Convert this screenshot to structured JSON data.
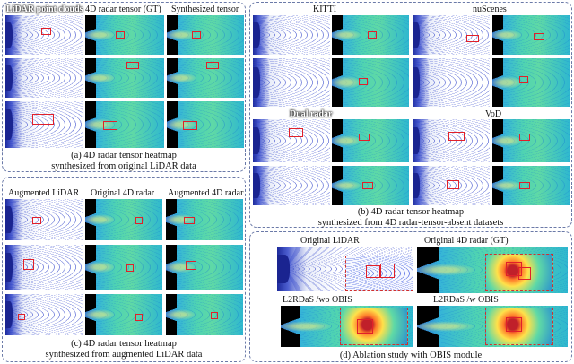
{
  "panel_a": {
    "col_labels": [
      "LiDAR point clouds",
      "4D radar tensor (GT)",
      "Synthesized tensor"
    ],
    "caption_line1": "(a) 4D radar tensor heatmap",
    "caption_line2": "synthesized from original LiDAR data"
  },
  "panel_b": {
    "dataset_labels": [
      "KITTI",
      "nuScenes",
      "Dual radar",
      "VoD"
    ],
    "caption_line1": "(b) 4D radar tensor heatmap",
    "caption_line2": "synthesized from 4D radar-tensor-absent datasets"
  },
  "panel_c": {
    "col_labels": [
      "Augmented LiDAR",
      "Original 4D radar",
      "Augmented 4D radar"
    ],
    "caption_line1": "(c) 4D radar tensor heatmap",
    "caption_line2": "synthesized from augmented LiDAR data"
  },
  "panel_d": {
    "labels": [
      "Original LiDAR",
      "Original 4D radar (GT)",
      "L2RDaS /wo OBIS",
      "L2RDaS /w OBIS"
    ],
    "caption": "(d) Ablation study with OBIS module"
  },
  "colors": {
    "panel_border": "#6b7aa8",
    "box": "#e0202a"
  }
}
